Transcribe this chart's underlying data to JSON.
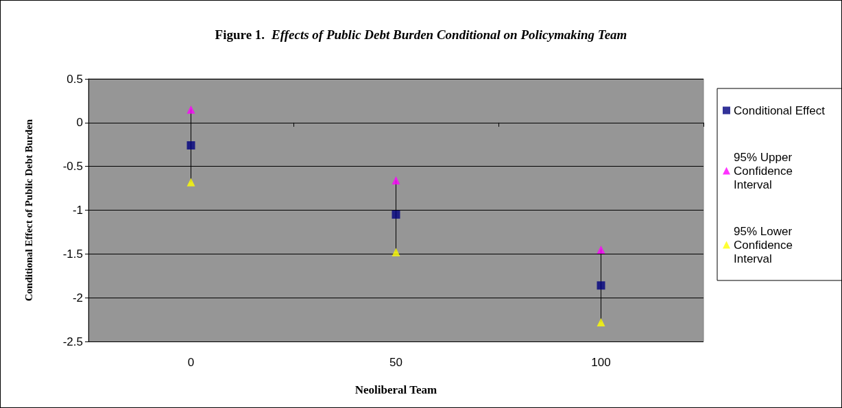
{
  "chart_data": {
    "type": "scatter",
    "title": "Figure 1. Effects of Public Debt Burden Conditional on Policymaking Team",
    "xlabel": "Neoliberal Team",
    "ylabel": "Conditional Effect of Public Debt Burden",
    "categories": [
      "0",
      "50",
      "100"
    ],
    "series": [
      {
        "name": "Conditional Effect",
        "color": "#000080",
        "marker": "square",
        "values": [
          -0.26,
          -1.05,
          -1.86
        ]
      },
      {
        "name": "95% Upper Confidence Interval",
        "color": "#ff00ff",
        "marker": "triangle",
        "values": [
          0.15,
          -0.66,
          -1.45
        ]
      },
      {
        "name": "95% Lower Confidence Interval",
        "color": "#ffff00",
        "marker": "triangle",
        "values": [
          -0.68,
          -1.48,
          -2.28
        ]
      }
    ],
    "ylim": [
      -2.5,
      0.5
    ],
    "yticks": [
      -2.5,
      -2,
      -1.5,
      -1,
      -0.5,
      0,
      0.5
    ],
    "grid": "y",
    "legend": "right"
  }
}
